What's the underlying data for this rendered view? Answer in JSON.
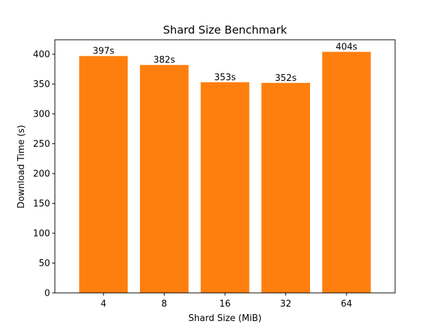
{
  "chart_data": {
    "type": "bar",
    "title": "Shard Size Benchmark",
    "xlabel": "Shard Size (MiB)",
    "ylabel": "Download Time (s)",
    "categories": [
      "4",
      "8",
      "16",
      "32",
      "64"
    ],
    "values": [
      397,
      382,
      353,
      352,
      404
    ],
    "data_labels": [
      "397s",
      "382s",
      "353s",
      "352s",
      "404s"
    ],
    "ylim": [
      0,
      424.2
    ],
    "yticks": [
      0,
      50,
      100,
      150,
      200,
      250,
      300,
      350,
      400
    ],
    "grid": false,
    "legend": "none",
    "bar_color": "#ff7f0e"
  }
}
